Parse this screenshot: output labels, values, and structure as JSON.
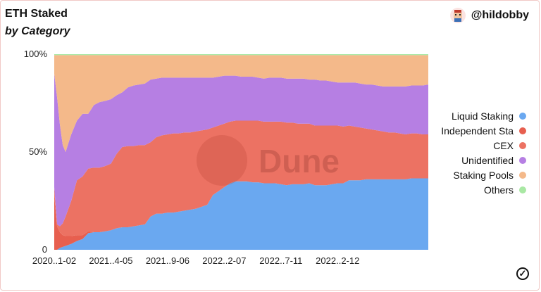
{
  "header": {
    "title": "ETH Staked",
    "subtitle": "by Category",
    "author": "@hildobby"
  },
  "watermark": "Dune",
  "icons": {
    "avatar": "pixel-avatar-icon",
    "check": "check-circle-icon"
  },
  "colors": {
    "liquid_staking": "#6aa8f0",
    "independent": "#e75f4f",
    "cex": "#ec7263",
    "unidentified": "#b67fe3",
    "staking_pools": "#f4b98a",
    "others": "#a9e8a4"
  },
  "chart_data": {
    "type": "area",
    "stacked": "percent",
    "x_tick_labels": [
      "2020..1-02",
      "2021..4-05",
      "2021..9-06",
      "2022..2-07",
      "2022..7-11",
      "2022..2-12"
    ],
    "y_tick_labels": [
      "0",
      "50%",
      "100%"
    ],
    "ylim": [
      0,
      100
    ],
    "legend_position": "right",
    "x": [
      0,
      0.5,
      1,
      1.5,
      2,
      3,
      4,
      5,
      6,
      7,
      8,
      9,
      10,
      11,
      12,
      13,
      14,
      15,
      16,
      17,
      18,
      19,
      20,
      21,
      22,
      23,
      24,
      25,
      26,
      27,
      28,
      29,
      30,
      31,
      32,
      33,
      34,
      35,
      36,
      37,
      38,
      39,
      40,
      41,
      42,
      43,
      44,
      45,
      46,
      47,
      48,
      49,
      50,
      51,
      52,
      53,
      54,
      55,
      56,
      57,
      58,
      59,
      60,
      61,
      62,
      63,
      64,
      65,
      66
    ],
    "series": [
      {
        "name": "Liquid Staking",
        "values": [
          0,
          0,
          1,
          1.5,
          2,
          3,
          4.5,
          5.5,
          8.5,
          9,
          9,
          9.5,
          10,
          11,
          11.5,
          11.5,
          12,
          12.5,
          13,
          17,
          18.5,
          18.5,
          19,
          19,
          19.5,
          20,
          20.5,
          21,
          22,
          23,
          28,
          30,
          32,
          34,
          35,
          35,
          35,
          34.5,
          34.5,
          34,
          34,
          34,
          33.5,
          33,
          33.5,
          33.5,
          33.5,
          34,
          33,
          33,
          33,
          33.5,
          34,
          34,
          35.5,
          35.5,
          35.5,
          36,
          36,
          36,
          36,
          36,
          36,
          36,
          36,
          36.5,
          36.5,
          36.5,
          36.5
        ]
      },
      {
        "name": "Independent Sta",
        "values": [
          28,
          12,
          8,
          6,
          5,
          4,
          3,
          2,
          1,
          0,
          0,
          0,
          0,
          0,
          0,
          0,
          0,
          0,
          0,
          0,
          0,
          0,
          0,
          0,
          0,
          0,
          0,
          0,
          0,
          0,
          0,
          0,
          0,
          0,
          0,
          0,
          0,
          0,
          0,
          0,
          0,
          0,
          0,
          0,
          0,
          0,
          0,
          0,
          0,
          0,
          0,
          0,
          0,
          0,
          0,
          0,
          0,
          0,
          0,
          0,
          0,
          0,
          0,
          0,
          0,
          0,
          0,
          0,
          0
        ]
      },
      {
        "name": "CEX",
        "values": [
          4,
          1,
          3,
          6,
          10,
          18,
          28,
          30,
          32,
          33,
          33,
          33.5,
          34,
          38,
          41,
          41.5,
          41,
          41,
          40.5,
          38,
          39,
          40,
          40,
          40.5,
          40,
          40,
          39.5,
          39.5,
          39,
          38.5,
          34.5,
          33.5,
          32.5,
          31.5,
          31,
          31,
          31,
          31.5,
          31.5,
          31.5,
          31.5,
          31.5,
          32,
          32,
          31.5,
          31,
          31,
          30.5,
          30.5,
          30.5,
          30.5,
          30,
          29.5,
          29,
          28,
          27.5,
          27,
          26,
          25.5,
          25,
          24.5,
          24,
          24,
          23.5,
          23,
          23,
          23,
          22.5,
          22.5
        ]
      },
      {
        "name": "Unidentified",
        "values": [
          58,
          65,
          52,
          40,
          33,
          34,
          30.5,
          32,
          28,
          32,
          33.5,
          33.5,
          33,
          30,
          28,
          30,
          31,
          31,
          31.5,
          32,
          30,
          29.5,
          29,
          28.5,
          28.5,
          28,
          28,
          27.5,
          27,
          26.5,
          25.5,
          25,
          24.5,
          23.5,
          23,
          22.5,
          22.5,
          22.5,
          22,
          22,
          22.5,
          22.5,
          22.5,
          22.5,
          22.5,
          23,
          23,
          22.5,
          23.5,
          23,
          23,
          22.5,
          22,
          22.5,
          22,
          22.5,
          22.5,
          22.5,
          23,
          23,
          23,
          23.5,
          23.5,
          24,
          24.5,
          24.5,
          24.5,
          25,
          25.5
        ]
      },
      {
        "name": "Staking Pools",
        "values": [
          9.5,
          21.5,
          35.5,
          46,
          49.5,
          40.5,
          33.5,
          30,
          30,
          25.5,
          24,
          23.5,
          22.5,
          20.5,
          19,
          16.5,
          15.5,
          15,
          14.5,
          12.5,
          12,
          11.5,
          11.5,
          11.5,
          11.5,
          11.5,
          11.5,
          11.5,
          11.5,
          11.5,
          11.5,
          11,
          10.5,
          10.5,
          10.5,
          11,
          11,
          11,
          11.5,
          12,
          11.5,
          11.5,
          11.5,
          12,
          12,
          12,
          12,
          12.5,
          12.5,
          13,
          13,
          13.5,
          14,
          14,
          14,
          14,
          14.5,
          15,
          15,
          15.5,
          16,
          16,
          16,
          16,
          16,
          15.5,
          15.5,
          15.5,
          15
        ]
      },
      {
        "name": "Others",
        "values": [
          0.5,
          0.5,
          0.5,
          0.5,
          0.5,
          0.5,
          0.5,
          0.5,
          0.5,
          0.5,
          0.5,
          0.5,
          0.5,
          0.5,
          0.5,
          0.5,
          0.5,
          0.5,
          0.5,
          0.5,
          0.5,
          0.5,
          0.5,
          0.5,
          0.5,
          0.5,
          0.5,
          0.5,
          0.5,
          0.5,
          0.5,
          0.5,
          0.5,
          0.5,
          0.5,
          0.5,
          0.5,
          0.5,
          0.5,
          0.5,
          0.5,
          0.5,
          0.5,
          0.5,
          0.5,
          0.5,
          0.5,
          0.5,
          0.5,
          0.5,
          0.5,
          0.5,
          0.5,
          0.5,
          0.5,
          0.5,
          0.5,
          0.5,
          0.5,
          0.5,
          0.5,
          0.5,
          0.5,
          0.5,
          0.5,
          0.5,
          0.5,
          0.5,
          0.5
        ]
      }
    ]
  }
}
